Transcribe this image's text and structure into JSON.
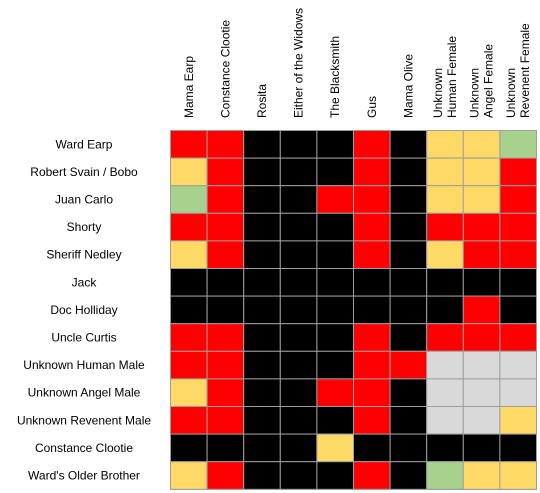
{
  "chart_data": {
    "type": "heatmap",
    "columns": [
      [
        "Mama Earp"
      ],
      [
        "Constance Clootie"
      ],
      [
        "Rosita"
      ],
      [
        "Either of the Widows"
      ],
      [
        "The Blacksmith"
      ],
      [
        "Gus"
      ],
      [
        "Mama Olive"
      ],
      [
        "Unknown",
        "Human Female"
      ],
      [
        "Unknown",
        "Angel Female"
      ],
      [
        "Unknown",
        "Revenent Female"
      ]
    ],
    "rows": [
      "Ward Earp",
      "Robert Svain / Bobo",
      "Juan Carlo",
      "Shorty",
      "Sheriff Nedley",
      "Jack",
      "Doc Holliday",
      "Uncle Curtis",
      "Unknown Human Male",
      "Unknown Angel Male",
      "Unknown Revenent Male",
      "Constance Clootie",
      "Ward's Older Brother"
    ],
    "categories": [
      "red",
      "yellow",
      "green",
      "black",
      "gray"
    ],
    "colors": {
      "red": "#ff0000",
      "yellow": "#ffd966",
      "green": "#a9d18e",
      "black": "#000000",
      "gray": "#d9d9d9"
    },
    "cells": [
      [
        "red",
        "red",
        "black",
        "black",
        "black",
        "red",
        "black",
        "yellow",
        "yellow",
        "green"
      ],
      [
        "yellow",
        "red",
        "black",
        "black",
        "black",
        "red",
        "black",
        "yellow",
        "yellow",
        "red"
      ],
      [
        "green",
        "red",
        "black",
        "black",
        "red",
        "red",
        "black",
        "yellow",
        "yellow",
        "red"
      ],
      [
        "red",
        "red",
        "black",
        "black",
        "black",
        "red",
        "black",
        "red",
        "red",
        "red"
      ],
      [
        "yellow",
        "red",
        "black",
        "black",
        "black",
        "red",
        "black",
        "yellow",
        "red",
        "red"
      ],
      [
        "black",
        "black",
        "black",
        "black",
        "black",
        "black",
        "black",
        "black",
        "black",
        "black"
      ],
      [
        "black",
        "black",
        "black",
        "black",
        "black",
        "black",
        "black",
        "black",
        "red",
        "black"
      ],
      [
        "red",
        "red",
        "black",
        "black",
        "black",
        "red",
        "black",
        "red",
        "red",
        "red"
      ],
      [
        "red",
        "red",
        "black",
        "black",
        "black",
        "red",
        "red",
        "gray",
        "gray",
        "gray"
      ],
      [
        "yellow",
        "red",
        "black",
        "black",
        "red",
        "red",
        "black",
        "gray",
        "gray",
        "gray"
      ],
      [
        "red",
        "red",
        "black",
        "black",
        "black",
        "red",
        "black",
        "gray",
        "gray",
        "yellow"
      ],
      [
        "black",
        "black",
        "black",
        "black",
        "yellow",
        "black",
        "black",
        "black",
        "black",
        "black"
      ],
      [
        "yellow",
        "red",
        "black",
        "black",
        "black",
        "red",
        "black",
        "green",
        "yellow",
        "yellow"
      ]
    ],
    "grid": true,
    "legend": "none"
  }
}
